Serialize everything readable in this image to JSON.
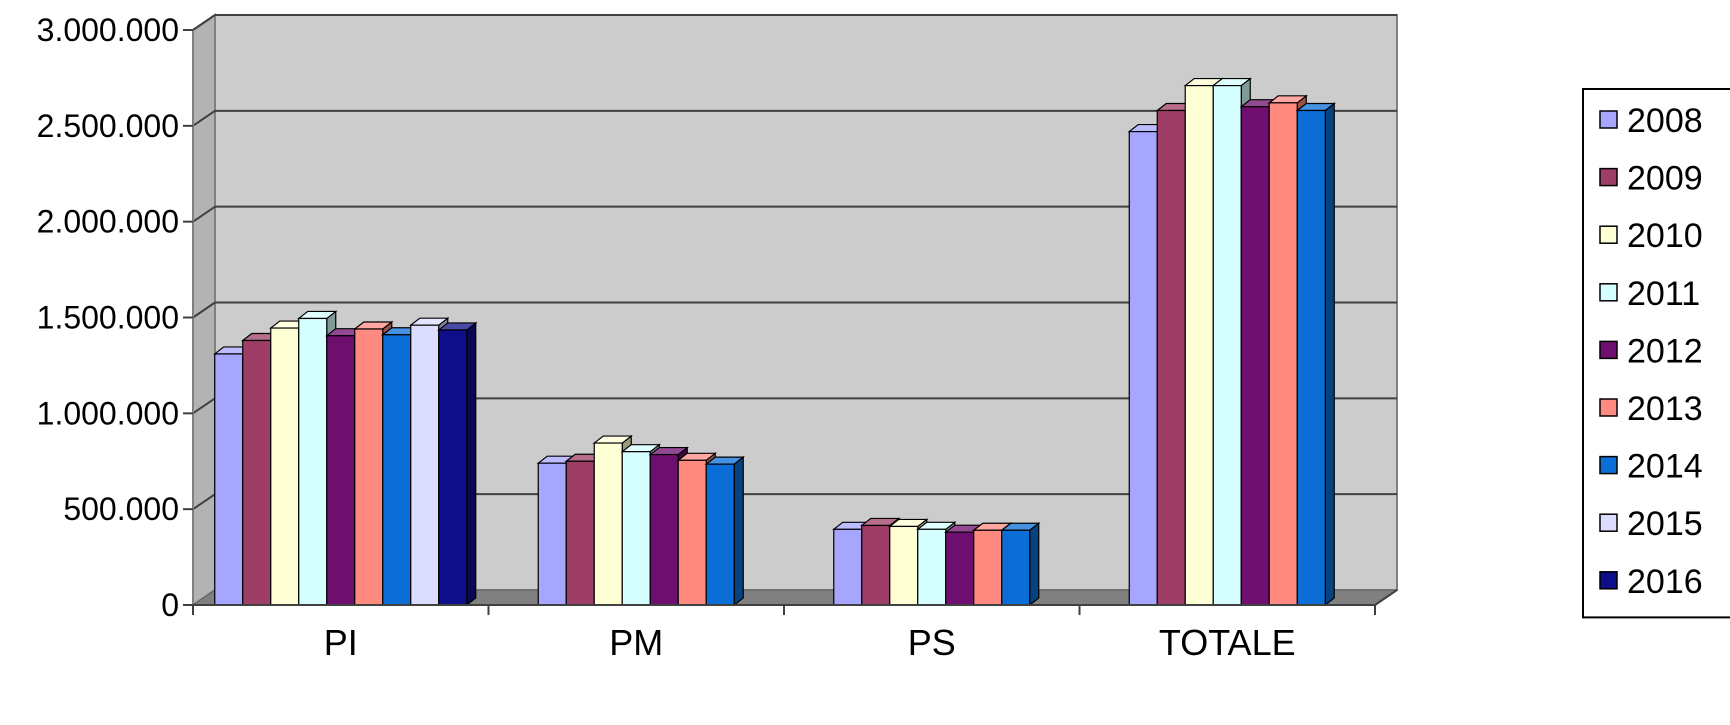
{
  "chart_data": {
    "type": "bar",
    "title": "",
    "xlabel": "",
    "ylabel": "",
    "ylim": [
      0,
      3000000
    ],
    "yticks": [
      0,
      500000,
      1000000,
      1500000,
      2000000,
      2500000,
      3000000
    ],
    "ytick_labels": [
      "0",
      "500.000",
      "1.000.000",
      "1.500.000",
      "2.000.000",
      "2.500.000",
      "3.000.000"
    ],
    "grid": true,
    "legend_position": "right",
    "categories": [
      "PI",
      "PM",
      "PS",
      "TOTALE"
    ],
    "series": [
      {
        "name": "2008",
        "color": "#a6a6ff",
        "values": [
          1310000,
          740000,
          395000,
          2470000
        ]
      },
      {
        "name": "2009",
        "color": "#9e3d66",
        "values": [
          1380000,
          750000,
          415000,
          2580000
        ]
      },
      {
        "name": "2010",
        "color": "#ffffd6",
        "values": [
          1445000,
          845000,
          410000,
          2710000
        ]
      },
      {
        "name": "2011",
        "color": "#d6ffff",
        "values": [
          1495000,
          800000,
          395000,
          2710000
        ]
      },
      {
        "name": "2012",
        "color": "#6e0e6e",
        "values": [
          1405000,
          785000,
          380000,
          2600000
        ]
      },
      {
        "name": "2013",
        "color": "#ff8a80",
        "values": [
          1440000,
          755000,
          390000,
          2620000
        ]
      },
      {
        "name": "2014",
        "color": "#0a6ed6",
        "values": [
          1410000,
          735000,
          390000,
          2580000
        ]
      },
      {
        "name": "2015",
        "color": "#dcdcff",
        "values": [
          1460000,
          null,
          null,
          null
        ]
      },
      {
        "name": "2016",
        "color": "#0e0e8a",
        "values": [
          1435000,
          null,
          null,
          null
        ]
      }
    ]
  }
}
